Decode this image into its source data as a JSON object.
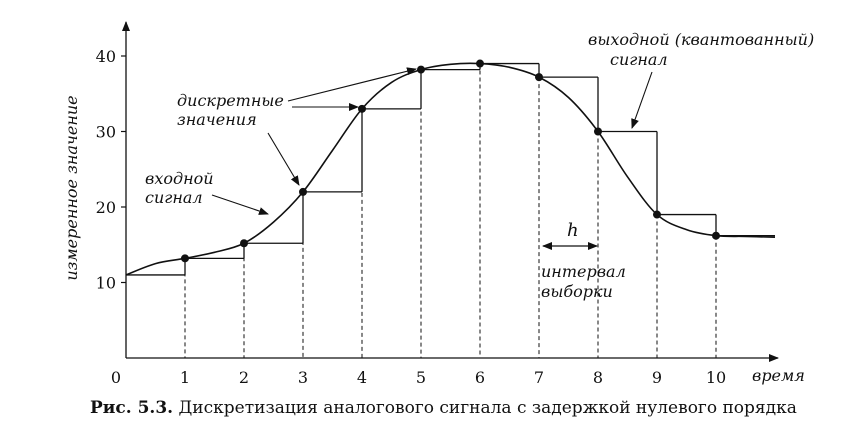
{
  "chart_data": {
    "type": "line",
    "title": "",
    "xlabel": "время",
    "ylabel": "измеренное значение",
    "x_ticks": [
      "0",
      "1",
      "2",
      "3",
      "4",
      "5",
      "6",
      "7",
      "8",
      "9",
      "10"
    ],
    "y_ticks": [
      "10",
      "20",
      "30",
      "40"
    ],
    "xlim": [
      0,
      11
    ],
    "ylim": [
      0,
      42
    ],
    "series": [
      {
        "role": "input",
        "x": [
          0,
          0.5,
          1,
          1.5,
          2,
          2.5,
          3,
          3.5,
          4,
          4.5,
          5,
          5.5,
          6,
          6.5,
          7,
          7.5,
          8,
          8.5,
          9,
          9.5,
          10,
          10.5,
          11
        ],
        "y": [
          11,
          12.5,
          13.2,
          14,
          15.2,
          18,
          22,
          27.5,
          33,
          36.5,
          38.2,
          38.9,
          39,
          38.5,
          37.2,
          34.5,
          30,
          24,
          19,
          17,
          16.2,
          16.1,
          16
        ]
      },
      {
        "role": "samples",
        "x": [
          1,
          2,
          3,
          4,
          5,
          6,
          7,
          8,
          9,
          10
        ],
        "y": [
          13.2,
          15.2,
          22,
          33,
          38.2,
          39,
          37.2,
          30,
          19,
          16.2
        ]
      },
      {
        "role": "output_zoh",
        "x": [
          0,
          1,
          2,
          3,
          4,
          5,
          6,
          7,
          8,
          9,
          10
        ],
        "y": [
          11,
          13.2,
          15.2,
          22,
          33,
          38.2,
          39,
          37.2,
          30,
          19,
          16.2
        ]
      }
    ],
    "annotations": {
      "input_signal": [
        "входной",
        "сигнал"
      ],
      "discrete_values": [
        "дискретные",
        "значения"
      ],
      "output_signal": [
        "выходной (квантованный)",
        "сигнал"
      ],
      "h": "h",
      "sampling_interval": [
        "интервал",
        "выборки"
      ]
    }
  },
  "caption": {
    "label": "Рис. 5.3.",
    "text": "Дискретизация аналогового сигнала с задержкой нулевого порядка"
  }
}
